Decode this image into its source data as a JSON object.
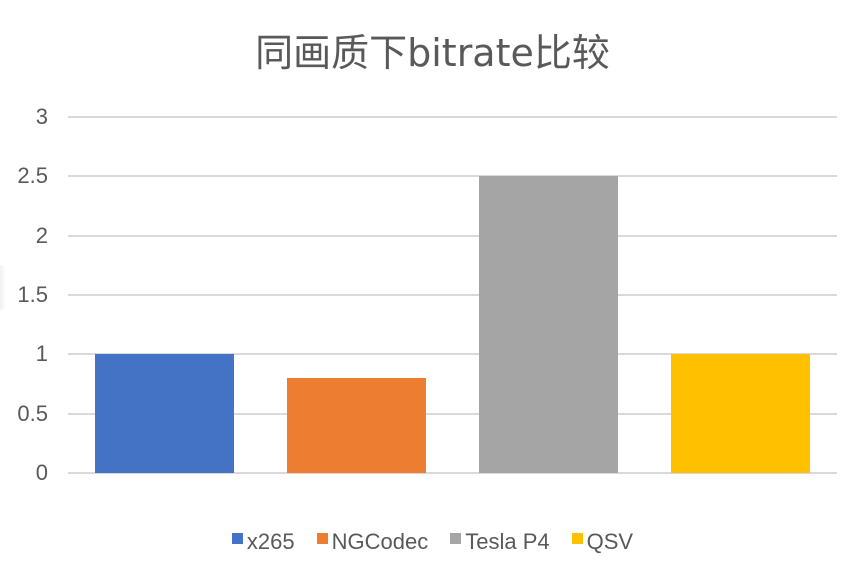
{
  "chart_data": {
    "type": "bar",
    "title": "同画质下bitrate比较",
    "categories": [
      "x265",
      "NGCodec",
      "Tesla P4",
      "QSV"
    ],
    "series": [
      {
        "name": "x265",
        "values": [
          1.0
        ],
        "color": "#4472C4"
      },
      {
        "name": "NGCodec",
        "values": [
          0.8
        ],
        "color": "#ED7D31"
      },
      {
        "name": "Tesla P4",
        "values": [
          2.5
        ],
        "color": "#A5A5A5"
      },
      {
        "name": "QSV",
        "values": [
          1.0
        ],
        "color": "#FFC000"
      }
    ],
    "values": [
      1.0,
      0.8,
      2.5,
      1.0
    ],
    "xlabel": "",
    "ylabel": "",
    "ylim": [
      0,
      3
    ],
    "yticks": [
      "0",
      "0.5",
      "1",
      "1.5",
      "2",
      "2.5",
      "3"
    ],
    "grid": true,
    "legend_position": "bottom"
  },
  "legend": [
    {
      "label": "x265",
      "color": "#4472C4"
    },
    {
      "label": "NGCodec",
      "color": "#ED7D31"
    },
    {
      "label": "Tesla P4",
      "color": "#A5A5A5"
    },
    {
      "label": "QSV",
      "color": "#FFC000"
    }
  ]
}
